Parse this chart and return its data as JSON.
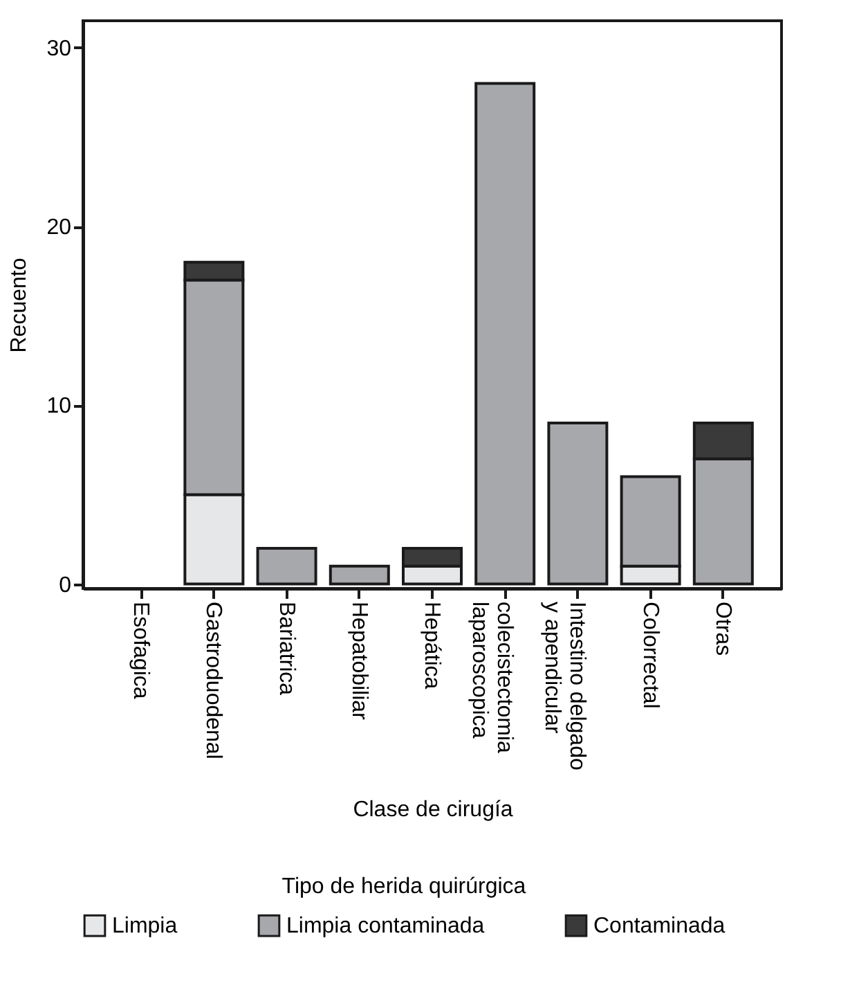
{
  "chart_data": {
    "type": "bar",
    "stacked": true,
    "xlabel": "Clase de cirugía",
    "ylabel": "Recuento",
    "legend_title": "Tipo de herida quirúrgica",
    "legend": "bottom",
    "grid": false,
    "categories": [
      "Esofagica",
      "Gastroduodenal",
      "Bariatrica",
      "Hepatobiliar",
      "Hepática",
      "colecistectomia\nlaparoscopica",
      "Intestino delgado\ny apendicular",
      "Colorrectal",
      "Otras"
    ],
    "series": [
      {
        "name": "Limpia",
        "color": "#e6e7e9",
        "values": [
          null,
          5,
          null,
          null,
          1,
          null,
          null,
          1,
          null
        ]
      },
      {
        "name": "Limpia contaminada",
        "color": "#a7a8ac",
        "values": [
          null,
          12,
          2,
          1,
          null,
          28,
          9,
          5,
          7
        ]
      },
      {
        "name": "Contaminada",
        "color": "#3a3a3a",
        "values": [
          null,
          1,
          null,
          null,
          1,
          null,
          null,
          null,
          2
        ]
      }
    ],
    "ylim": [
      -0.25,
      31.5
    ],
    "yticks": [
      0,
      10,
      20,
      30
    ]
  }
}
